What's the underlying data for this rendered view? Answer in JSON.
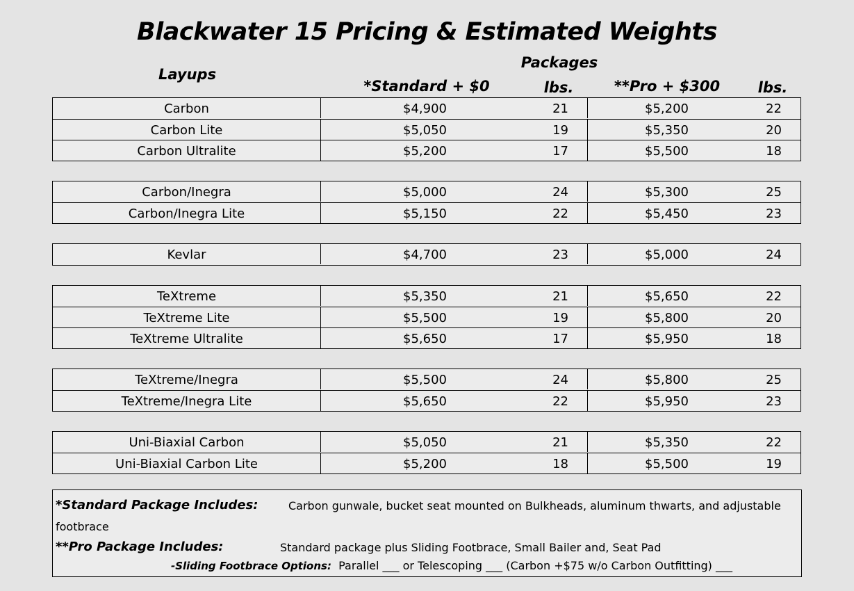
{
  "title": "Blackwater 15 Pricing & Estimated Weights",
  "headers": {
    "layups": "Layups",
    "packages": "Packages",
    "standard": "*Standard  + $0",
    "lbs1": "lbs.",
    "pro": "**Pro + $300",
    "lbs2": "lbs."
  },
  "groups": [
    [
      {
        "layup": "Carbon",
        "std_price": "$4,900",
        "std_lbs": "21",
        "pro_price": "$5,200",
        "pro_lbs": "22"
      },
      {
        "layup": "Carbon Lite",
        "std_price": "$5,050",
        "std_lbs": "19",
        "pro_price": "$5,350",
        "pro_lbs": "20"
      },
      {
        "layup": "Carbon Ultralite",
        "std_price": "$5,200",
        "std_lbs": "17",
        "pro_price": "$5,500",
        "pro_lbs": "18"
      }
    ],
    [
      {
        "layup": "Carbon/Inegra",
        "std_price": "$5,000",
        "std_lbs": "24",
        "pro_price": "$5,300",
        "pro_lbs": "25"
      },
      {
        "layup": "Carbon/Inegra Lite",
        "std_price": "$5,150",
        "std_lbs": "22",
        "pro_price": "$5,450",
        "pro_lbs": "23"
      }
    ],
    [
      {
        "layup": "Kevlar",
        "std_price": "$4,700",
        "std_lbs": "23",
        "pro_price": "$5,000",
        "pro_lbs": "24"
      }
    ],
    [
      {
        "layup": "TeXtreme",
        "std_price": "$5,350",
        "std_lbs": "21",
        "pro_price": "$5,650",
        "pro_lbs": "22"
      },
      {
        "layup": "TeXtreme Lite",
        "std_price": "$5,500",
        "std_lbs": "19",
        "pro_price": "$5,800",
        "pro_lbs": "20"
      },
      {
        "layup": "TeXtreme Ultralite",
        "std_price": "$5,650",
        "std_lbs": "17",
        "pro_price": "$5,950",
        "pro_lbs": "18"
      }
    ],
    [
      {
        "layup": "TeXtreme/Inegra",
        "std_price": "$5,500",
        "std_lbs": "24",
        "pro_price": "$5,800",
        "pro_lbs": "25"
      },
      {
        "layup": "TeXtreme/Inegra Lite",
        "std_price": "$5,650",
        "std_lbs": "22",
        "pro_price": "$5,950",
        "pro_lbs": "23"
      }
    ],
    [
      {
        "layup": "Uni-Biaxial Carbon",
        "std_price": "$5,050",
        "std_lbs": "21",
        "pro_price": "$5,350",
        "pro_lbs": "22"
      },
      {
        "layup": "Uni-Biaxial Carbon Lite",
        "std_price": "$5,200",
        "std_lbs": "18",
        "pro_price": "$5,500",
        "pro_lbs": "19"
      }
    ]
  ],
  "notes": {
    "standard_label": "*Standard Package Includes:",
    "standard_text": "Carbon gunwale, bucket seat mounted on Bulkheads, aluminum thwarts, and adjustable",
    "standard_text_wrap": "footbrace",
    "pro_label": "**Pro Package  Includes:",
    "pro_text": "Standard package plus Sliding Footbrace, Small Bailer and, Seat Pad",
    "options_label": "-Sliding Footbrace Options:",
    "options_text": "Parallel ___ or Telescoping ___ (Carbon +$75 w/o Carbon Outfitting) ___"
  }
}
